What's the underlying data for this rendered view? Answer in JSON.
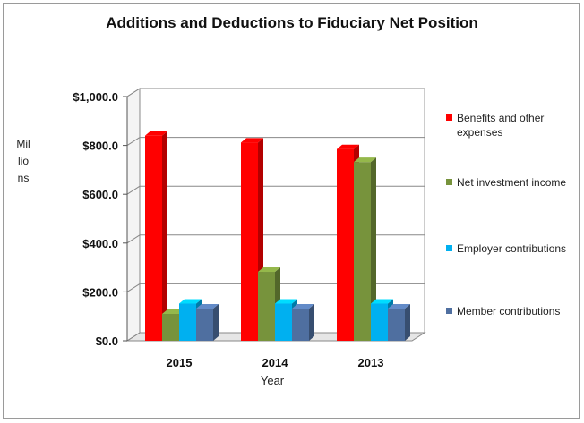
{
  "chart_data": {
    "type": "bar",
    "title": "Additions and Deductions to Fiduciary Net Position",
    "xlabel": "Year",
    "ylabel": "Millions",
    "categories": [
      "2015",
      "2014",
      "2013"
    ],
    "ylim": [
      0,
      1000
    ],
    "yticks": [
      "$0.0",
      "$200.0",
      "$400.0",
      "$600.0",
      "$800.0",
      "$1,000.0"
    ],
    "grid": true,
    "legend_position": "right",
    "series": [
      {
        "name": "Benefits and other expenses",
        "color": "#ff0000",
        "values": [
          840,
          812,
          785
        ]
      },
      {
        "name": "Net investment income",
        "color": "#77933c",
        "values": [
          110,
          282,
          732
        ]
      },
      {
        "name": "Employer contributions",
        "color": "#00b0f0",
        "values": [
          152,
          152,
          152
        ]
      },
      {
        "name": "Member contributions",
        "color": "#4f6fa0",
        "values": [
          132,
          132,
          132
        ]
      }
    ]
  }
}
